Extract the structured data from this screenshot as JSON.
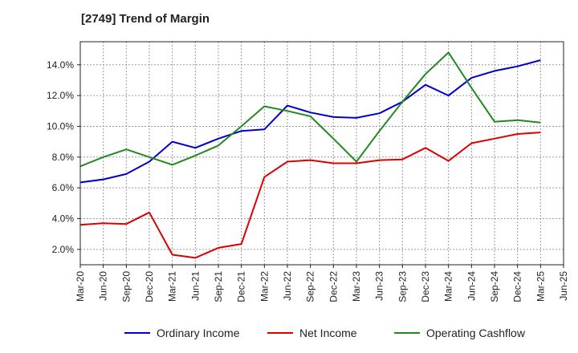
{
  "chart_data": {
    "type": "line",
    "title": "[2749]  Trend of Margin",
    "xlabel": "",
    "ylabel": "",
    "x": [
      "Mar-20",
      "Jun-20",
      "Sep-20",
      "Dec-20",
      "Mar-21",
      "Jun-21",
      "Sep-21",
      "Dec-21",
      "Mar-22",
      "Jun-22",
      "Sep-22",
      "Dec-22",
      "Mar-23",
      "Jun-23",
      "Sep-23",
      "Dec-23",
      "Mar-24",
      "Jun-24",
      "Sep-24",
      "Dec-24",
      "Mar-25",
      "Jun-25"
    ],
    "ylim": [
      1.0,
      15.5
    ],
    "yticks": [
      2.0,
      4.0,
      6.0,
      8.0,
      10.0,
      12.0,
      14.0
    ],
    "ytick_labels": [
      "2.0%",
      "4.0%",
      "6.0%",
      "8.0%",
      "10.0%",
      "12.0%",
      "14.0%"
    ],
    "grid": true,
    "legend_position": "bottom",
    "series": [
      {
        "name": "Ordinary Income",
        "color": "#0000cc",
        "values": [
          6.35,
          6.55,
          6.9,
          7.7,
          9.0,
          8.6,
          9.2,
          9.7,
          9.8,
          11.35,
          10.9,
          10.6,
          10.55,
          10.85,
          11.6,
          12.7,
          12.0,
          13.15,
          13.6,
          13.9,
          14.3,
          null
        ]
      },
      {
        "name": "Net Income",
        "color": "#dd0000",
        "values": [
          3.6,
          3.7,
          3.65,
          4.4,
          1.65,
          1.45,
          2.1,
          2.35,
          6.7,
          7.7,
          7.8,
          7.6,
          7.6,
          7.8,
          7.85,
          8.6,
          7.75,
          8.9,
          9.2,
          9.5,
          9.6,
          null
        ]
      },
      {
        "name": "Operating Cashflow",
        "color": "#228822",
        "values": [
          7.4,
          8.0,
          8.5,
          8.0,
          7.5,
          8.1,
          8.75,
          10.0,
          11.3,
          11.0,
          10.65,
          9.2,
          7.7,
          9.7,
          11.6,
          13.4,
          14.8,
          12.5,
          10.3,
          10.4,
          10.25,
          null
        ]
      }
    ]
  }
}
